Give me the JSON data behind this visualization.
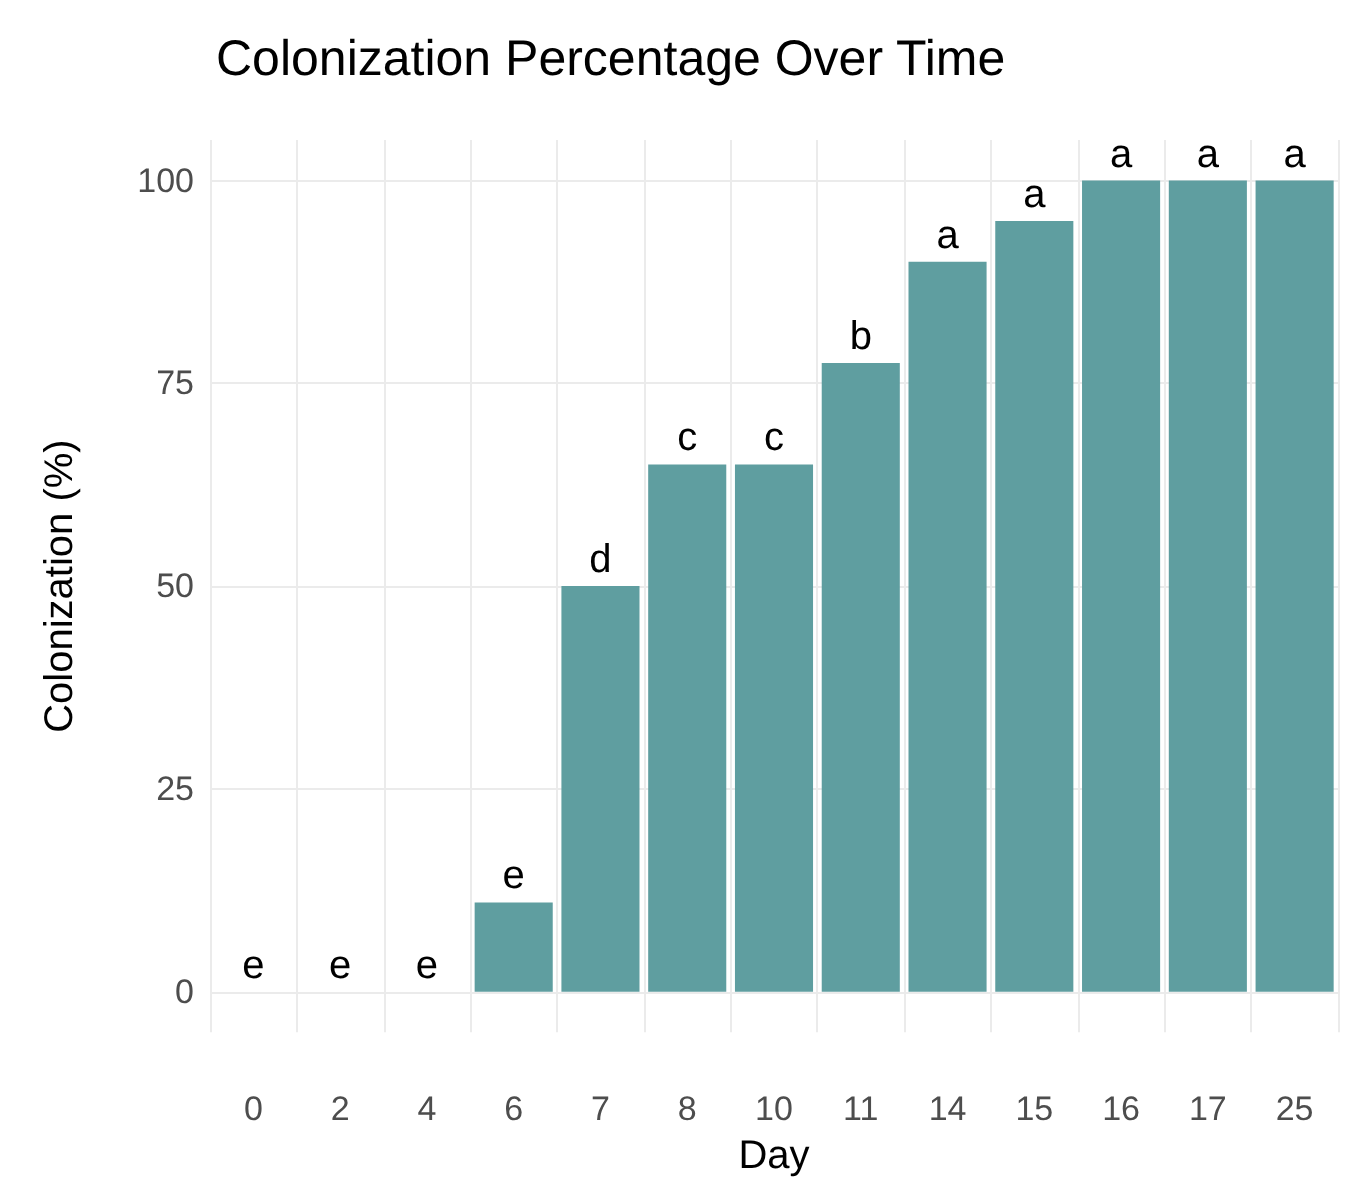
{
  "chart_data": {
    "type": "bar",
    "title": "Colonization Percentage Over Time",
    "xlabel": "Day",
    "ylabel": "Colonization (%)",
    "categories": [
      "0",
      "2",
      "4",
      "6",
      "7",
      "8",
      "10",
      "11",
      "14",
      "15",
      "16",
      "17",
      "25"
    ],
    "values": [
      0,
      0,
      0,
      11,
      50,
      65,
      65,
      77.5,
      90,
      95,
      100,
      100,
      100
    ],
    "value_labels": [
      "e",
      "e",
      "e",
      "e",
      "d",
      "c",
      "c",
      "b",
      "a",
      "a",
      "a",
      "a",
      "a"
    ],
    "color": "#5f9ea0",
    "ylim": [
      -5,
      105
    ],
    "yticks": [
      0,
      25,
      50,
      75,
      100
    ],
    "grid": true
  }
}
